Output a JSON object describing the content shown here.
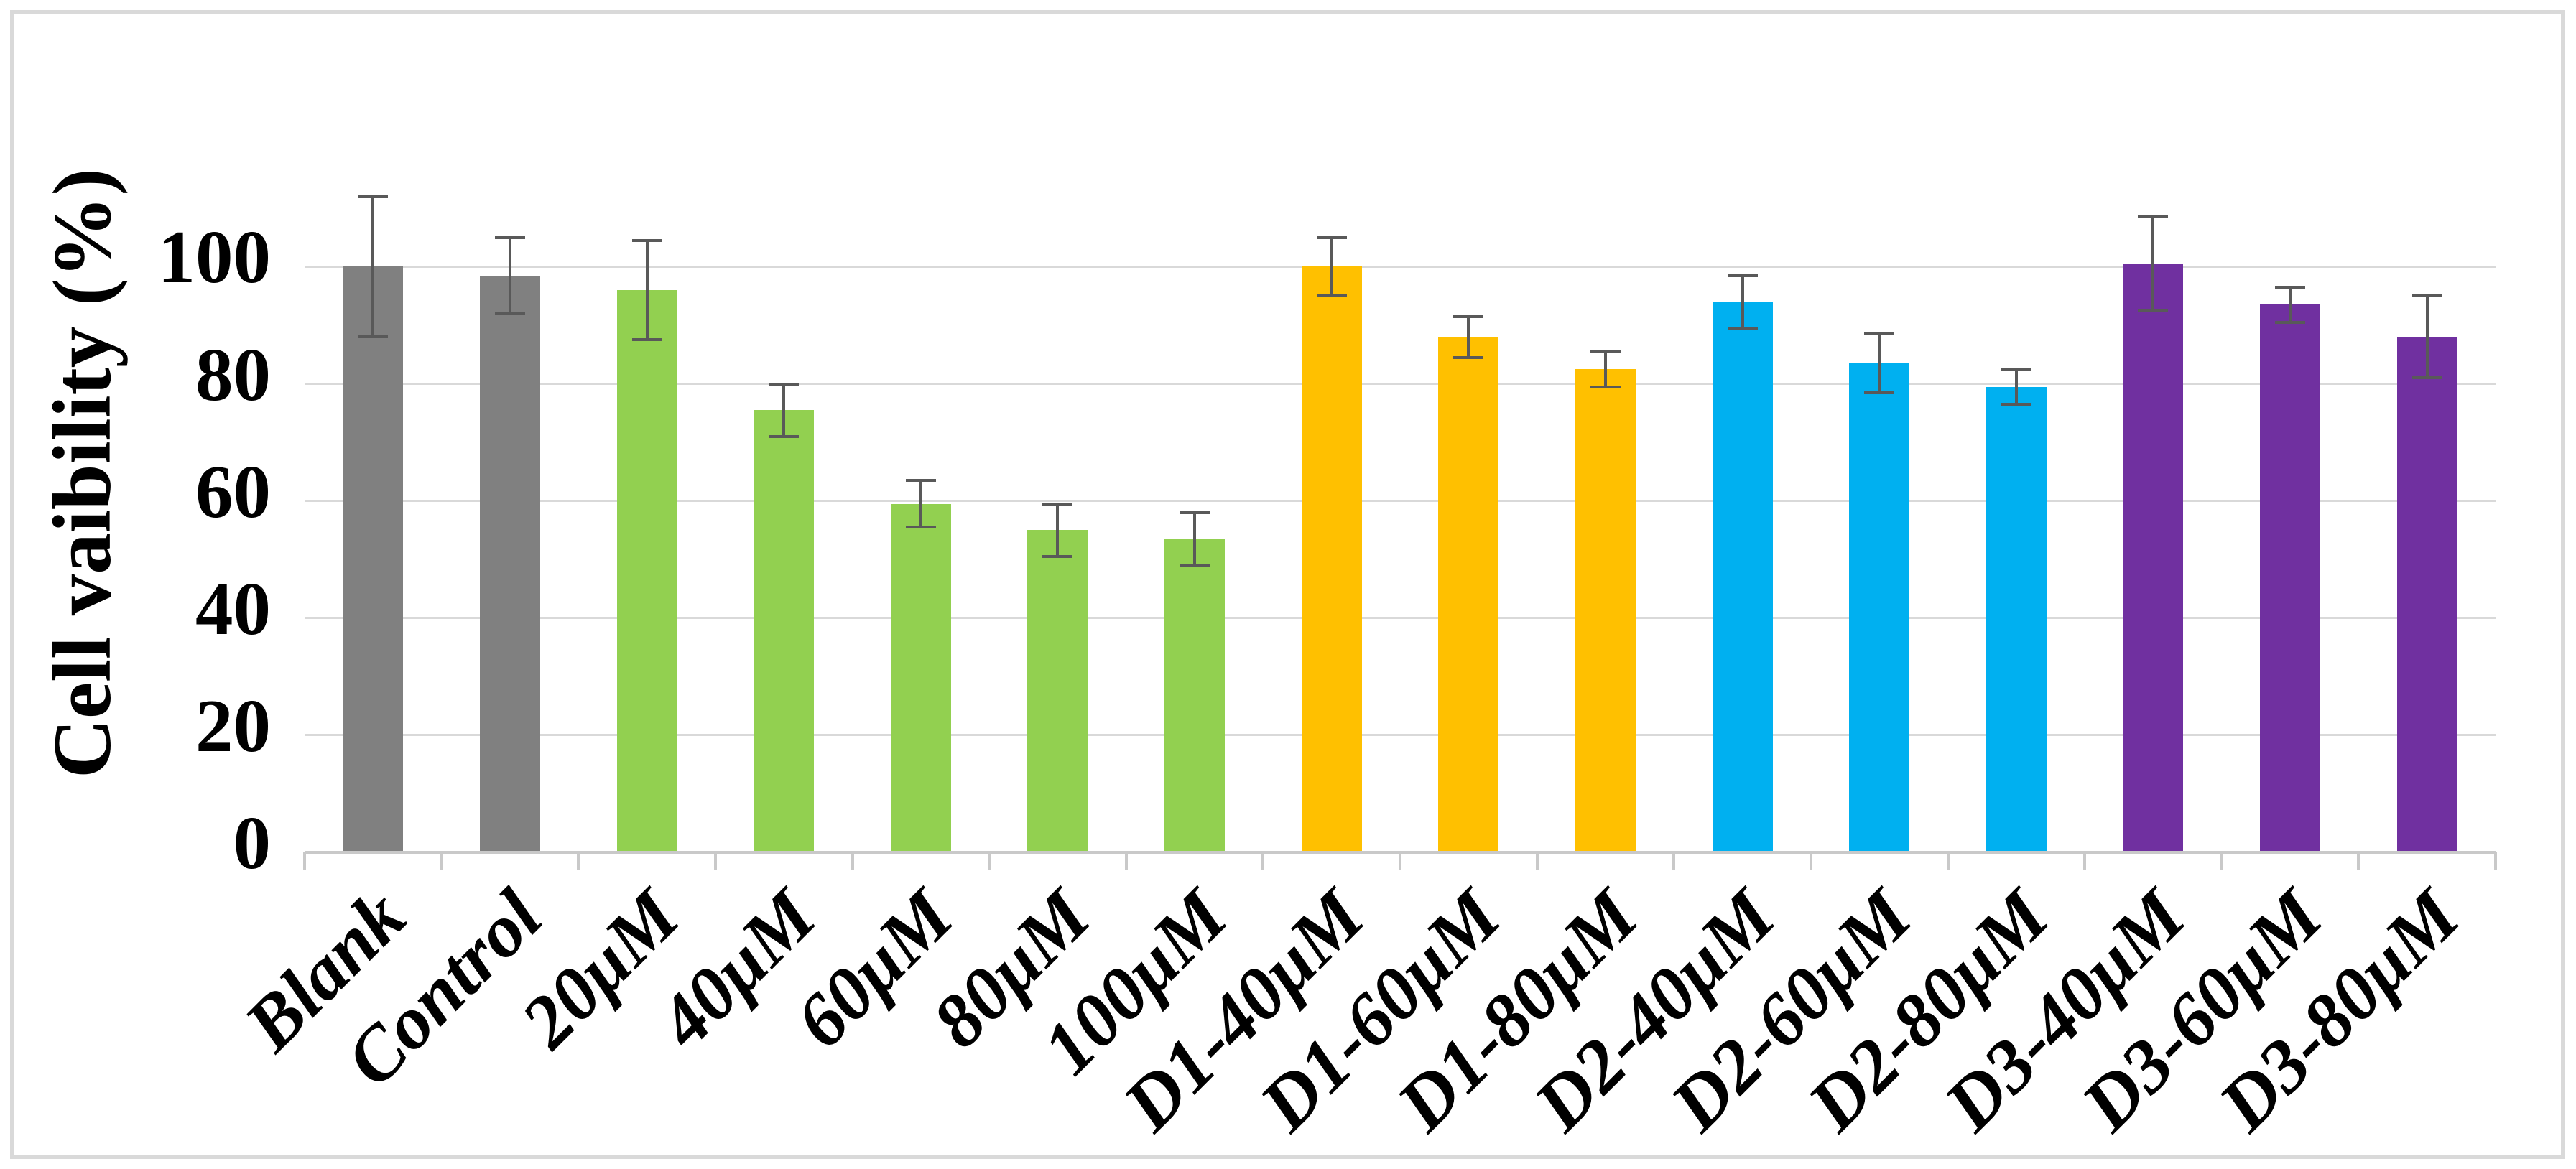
{
  "chart_data": {
    "type": "bar",
    "title": "",
    "ylabel": "Cell vaibility (%)",
    "xlabel": "",
    "ylim": [
      0,
      116
    ],
    "yticks": [
      0,
      20,
      40,
      60,
      80,
      100
    ],
    "grid": "horizontal",
    "legend": "none",
    "categories": [
      "Blank",
      "Control",
      "20μM",
      "40μM",
      "60μM",
      "80μM",
      "100μM",
      "D1-40μM",
      "D1-60μM",
      "D1-80μM",
      "D2-40μM",
      "D2-60μM",
      "D2-80μM",
      "D3-40μM",
      "D3-60μM",
      "D3-80μM"
    ],
    "values": [
      100,
      98.5,
      96,
      75.5,
      59.5,
      55,
      53.5,
      100,
      88,
      82.5,
      94,
      83.5,
      79.5,
      100.5,
      93.5,
      88
    ],
    "errors": [
      12,
      6.5,
      8.5,
      4.5,
      4,
      4.5,
      4.5,
      5,
      3.5,
      3,
      4.5,
      5,
      3,
      8,
      3,
      7
    ],
    "bar_colors": [
      "#808080",
      "#808080",
      "#92D050",
      "#92D050",
      "#92D050",
      "#92D050",
      "#92D050",
      "#FFC000",
      "#FFC000",
      "#FFC000",
      "#00B0F0",
      "#00B0F0",
      "#00B0F0",
      "#7030A0",
      "#7030A0",
      "#7030A0"
    ],
    "color_groups": {
      "blank_control": "#808080",
      "free_drug": "#92D050",
      "d1_series": "#FFC000",
      "d2_series": "#00B0F0",
      "d3_series": "#7030A0"
    },
    "gridline_color": "#D9D9D9",
    "axis_color": "#C9C9C9",
    "error_bar_color": "#595959",
    "frame_border_color": "#D9D9D9",
    "text_color": "#000000"
  }
}
